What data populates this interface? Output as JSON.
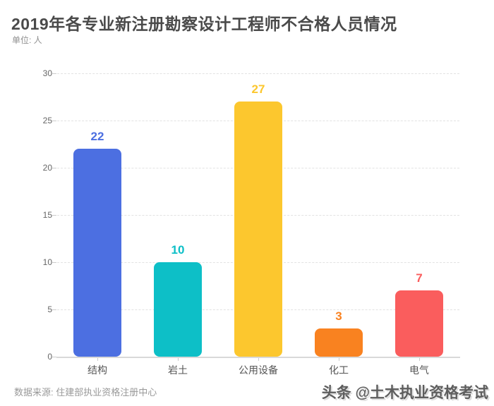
{
  "header": {
    "title": "2019年各专业新注册勘察设计工程师不合格人员情况",
    "unit": "单位: 人"
  },
  "chart_data": {
    "type": "bar",
    "title": "2019年各专业新注册勘察设计工程师不合格人员情况",
    "unit": "人",
    "categories": [
      "结构",
      "岩土",
      "公用设备",
      "化工",
      "电气"
    ],
    "values": [
      22,
      10,
      27,
      3,
      7
    ],
    "bar_colors": [
      "#4c6fe1",
      "#0dbfc7",
      "#fcc72e",
      "#f98220",
      "#fa5d5d"
    ],
    "xlabel": "",
    "ylabel": "单位: 人",
    "ylim": [
      0,
      30
    ],
    "yticks": [
      0,
      5,
      10,
      15,
      20,
      25,
      30
    ],
    "grid": "horizontal-dashed",
    "legend": "none",
    "value_labels": true
  },
  "footer": {
    "source": "数据来源: 住建部执业资格注册中心",
    "watermark": "头条 @土木执业资格考试"
  },
  "colors": {
    "background": "#ffffff",
    "title_text": "#4a4a4a",
    "axis_text": "#666666",
    "category_text": "#555555",
    "muted_text": "#999999",
    "gridline": "#e2e2e2",
    "axis_line": "#d9d9d9"
  }
}
